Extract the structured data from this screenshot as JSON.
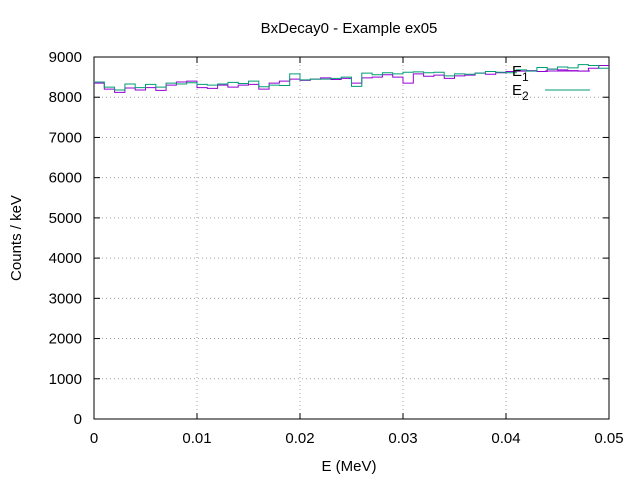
{
  "chart_data": {
    "type": "line",
    "title": "BxDecay0 - Example ex05",
    "xlabel": "E (MeV)",
    "ylabel": "Counts / keV",
    "xlim": [
      0,
      0.05
    ],
    "ylim": [
      0,
      9000
    ],
    "x_ticks": [
      "0",
      "0.01",
      "0.02",
      "0.03",
      "0.04",
      "0.05"
    ],
    "y_ticks": [
      "0",
      "1000",
      "2000",
      "3000",
      "4000",
      "5000",
      "6000",
      "7000",
      "8000",
      "9000"
    ],
    "grid": true,
    "legend_position": "top-right",
    "step_style": "histogram",
    "bin_width": 0.001,
    "series": [
      {
        "name": "E1",
        "label_main": "E",
        "label_sub": "1",
        "color": "#9400d3",
        "values": [
          8350,
          8200,
          8120,
          8230,
          8180,
          8240,
          8170,
          8300,
          8380,
          8400,
          8240,
          8220,
          8300,
          8250,
          8300,
          8320,
          8200,
          8350,
          8400,
          8450,
          8420,
          8450,
          8480,
          8440,
          8470,
          8350,
          8480,
          8500,
          8560,
          8500,
          8350,
          8580,
          8520,
          8550,
          8470,
          8530,
          8550,
          8600,
          8570,
          8610,
          8640,
          8650,
          8660,
          8640,
          8700,
          8680,
          8660,
          8650,
          8720,
          8790
        ]
      },
      {
        "name": "E2",
        "label_main": "E",
        "label_sub": "2",
        "color": "#009e73",
        "values": [
          8380,
          8250,
          8180,
          8330,
          8240,
          8320,
          8250,
          8350,
          8330,
          8360,
          8320,
          8300,
          8330,
          8370,
          8340,
          8400,
          8260,
          8300,
          8290,
          8580,
          8430,
          8450,
          8450,
          8470,
          8500,
          8270,
          8600,
          8560,
          8610,
          8580,
          8620,
          8630,
          8610,
          8620,
          8530,
          8580,
          8570,
          8600,
          8640,
          8620,
          8610,
          8680,
          8650,
          8740,
          8700,
          8750,
          8730,
          8810,
          8790,
          8720
        ]
      }
    ]
  }
}
